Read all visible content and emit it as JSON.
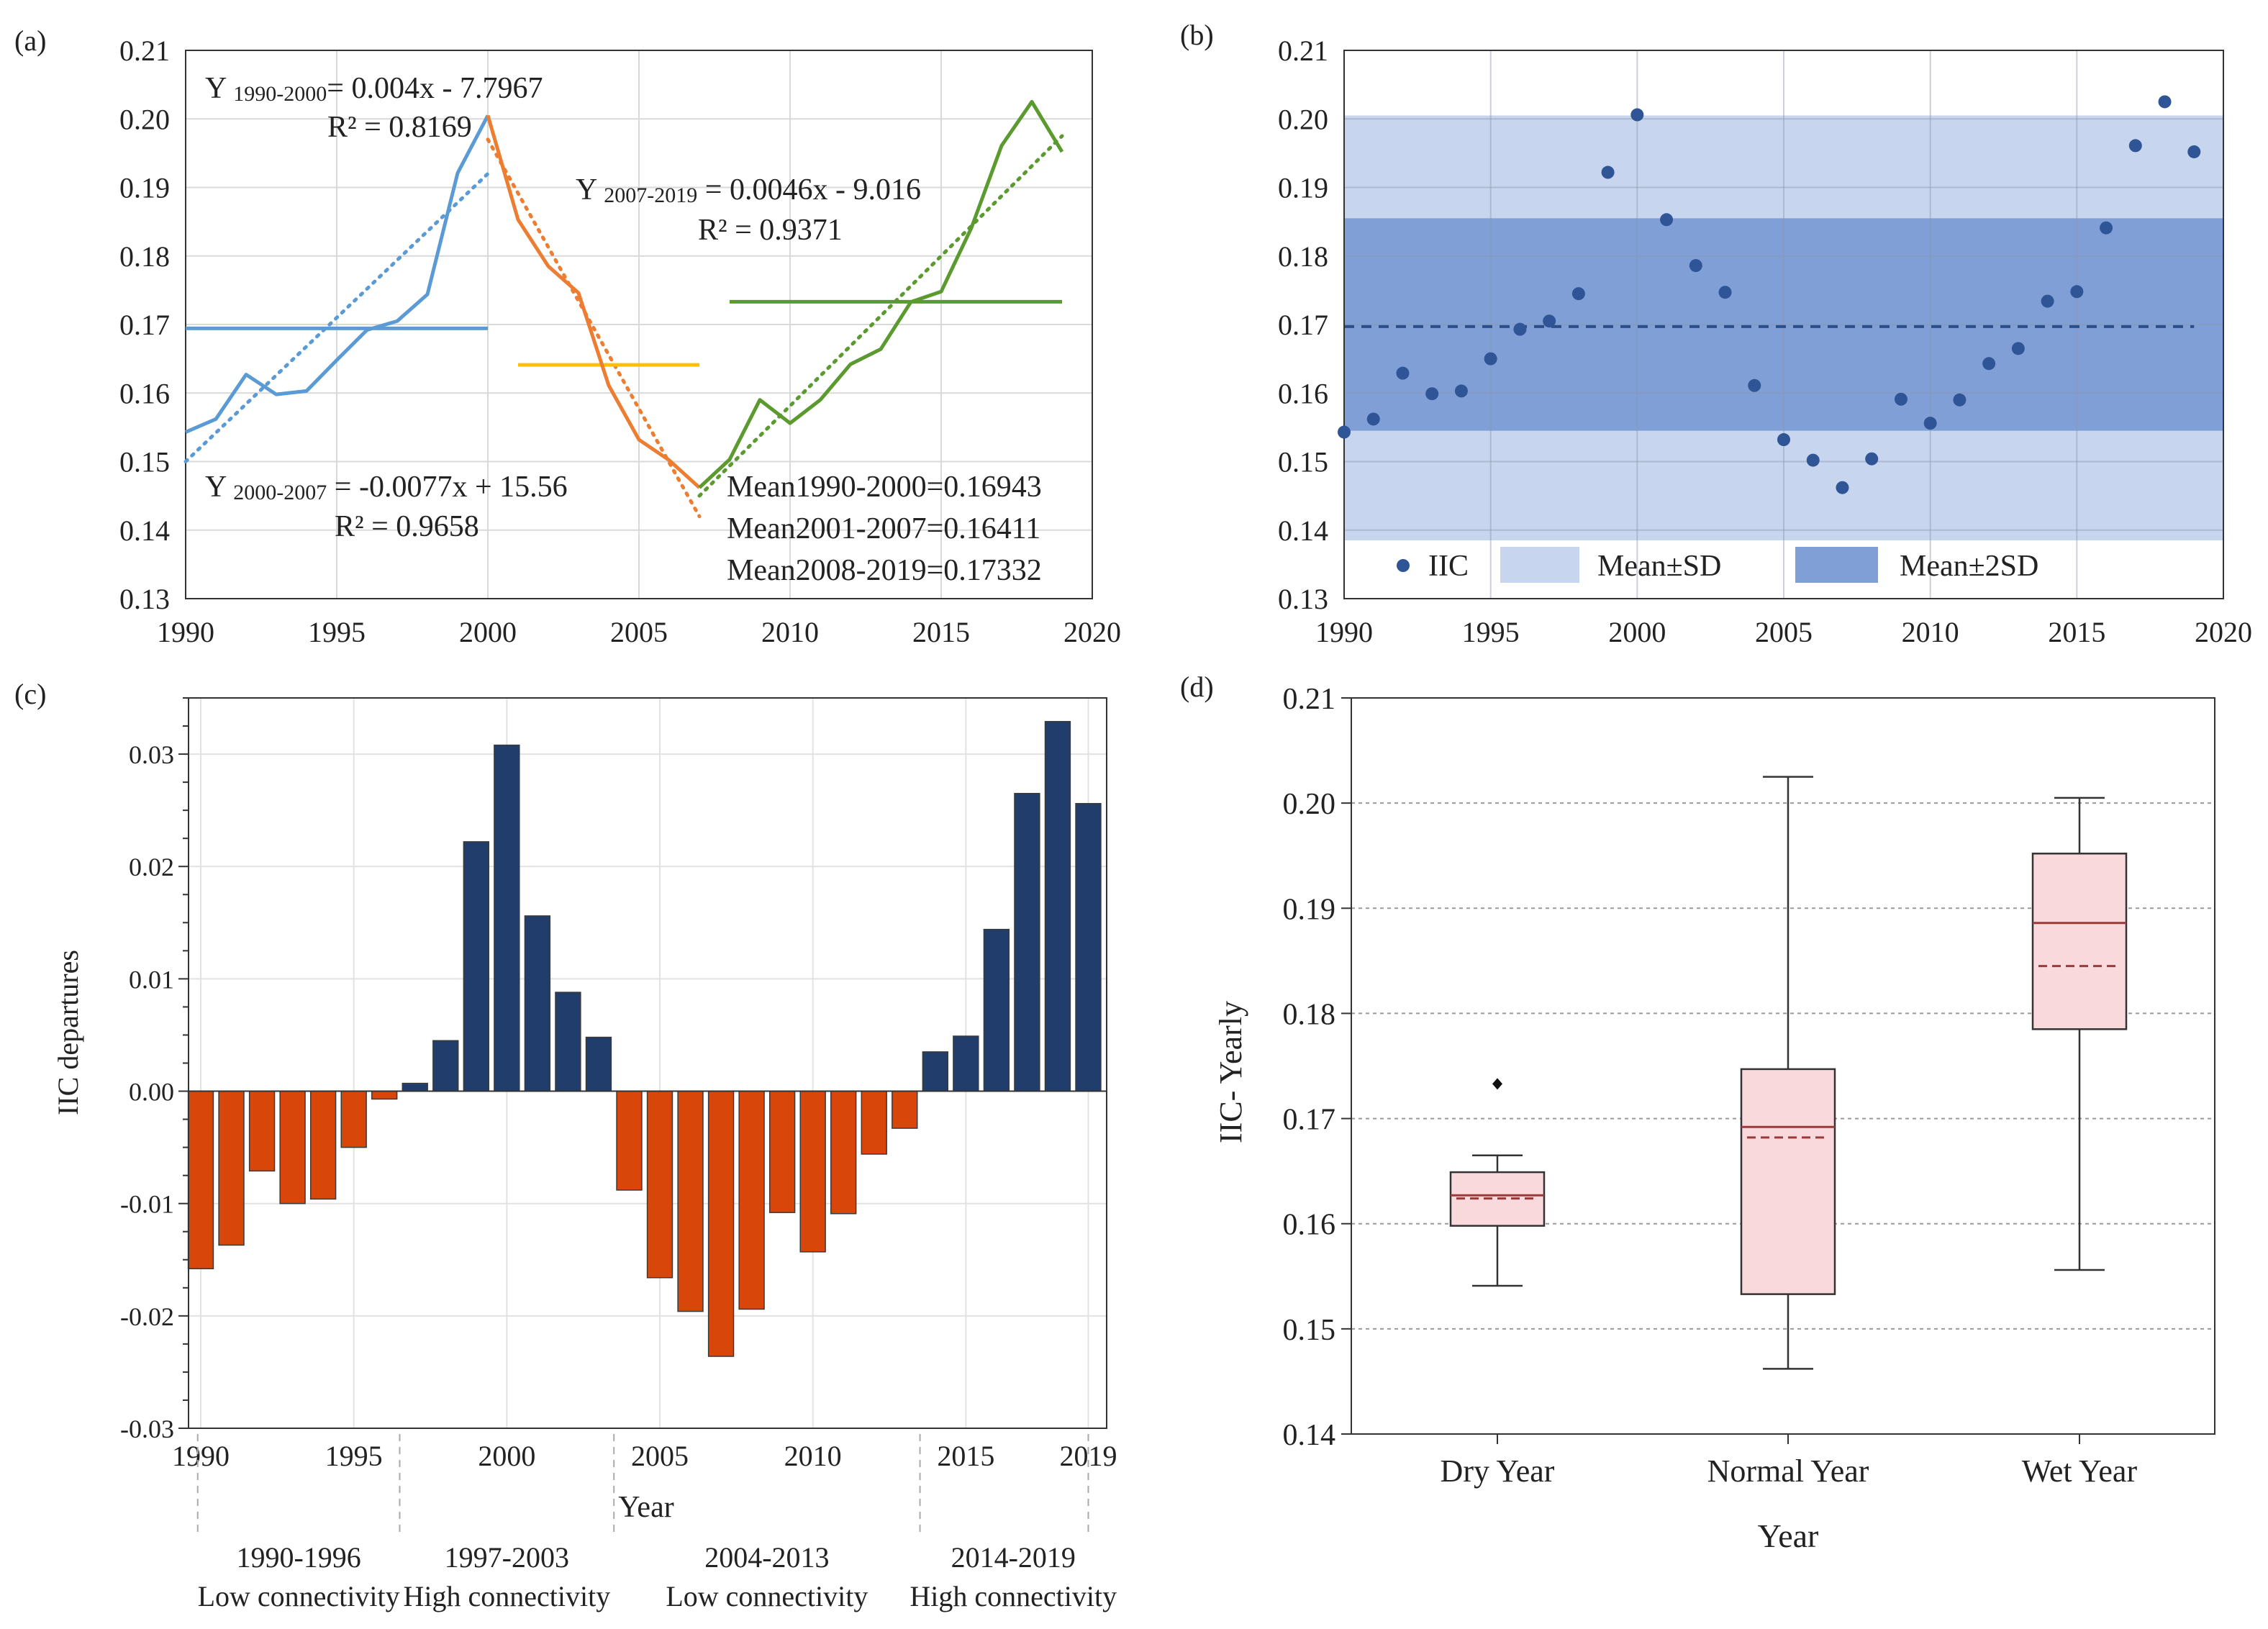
{
  "colors": {
    "blue_line": "#5b9bd5",
    "orange_line": "#ed7d31",
    "yellow_line": "#ffc000",
    "green_line": "#5a9a2e",
    "dot": "#2f5597",
    "band_sd": "#c7d5ee",
    "band_2sd": "#7f9fd6",
    "bar_neg": "#d9460a",
    "bar_pos": "#203d6b",
    "box_fill": "#f9d9dc",
    "median": "#9b3a3a",
    "grid": "#d9d9d9",
    "axis": "#333333"
  },
  "chart_data": [
    {
      "panel": "a",
      "type": "line",
      "panel_label": "(a)",
      "x": [
        1990,
        1991,
        1992,
        1993,
        1994,
        1995,
        1996,
        1997,
        1998,
        1999,
        2000,
        2001,
        2002,
        2003,
        2004,
        2005,
        2006,
        2007,
        2008,
        2009,
        2010,
        2011,
        2012,
        2013,
        2014,
        2015,
        2016,
        2017,
        2018,
        2019
      ],
      "y": [
        0.1543,
        0.1562,
        0.1627,
        0.1598,
        0.1603,
        0.1648,
        0.1692,
        0.1705,
        0.1744,
        0.1921,
        0.2005,
        0.1853,
        0.1785,
        0.1746,
        0.1611,
        0.1532,
        0.1502,
        0.1462,
        0.1503,
        0.159,
        0.1556,
        0.159,
        0.1642,
        0.1664,
        0.1733,
        0.1748,
        0.1841,
        0.1961,
        0.2025,
        0.1952
      ],
      "segments": [
        {
          "name": "1990-2000",
          "from": 1990,
          "to": 2000,
          "color_key": "blue_line"
        },
        {
          "name": "2000-2007",
          "from": 2000,
          "to": 2007,
          "color_key": "orange_line"
        },
        {
          "name": "2007-2019",
          "from": 2007,
          "to": 2019,
          "color_key": "green_line"
        }
      ],
      "trend_lines": [
        {
          "name": "trend-1990-2000",
          "from": [
            1990,
            0.15
          ],
          "to": [
            2000,
            0.192
          ],
          "color_key": "blue_line"
        },
        {
          "name": "trend-2000-2007",
          "from": [
            2000,
            0.197
          ],
          "to": [
            2007,
            0.142
          ],
          "color_key": "orange_line"
        },
        {
          "name": "trend-2007-2019",
          "from": [
            2007,
            0.145
          ],
          "to": [
            2019,
            0.1975
          ],
          "color_key": "green_line"
        }
      ],
      "mean_lines": [
        {
          "name": "mean-1990-2000",
          "from": 1990,
          "to": 2000,
          "value": 0.16943,
          "color_key": "blue_line"
        },
        {
          "name": "mean-2001-2007",
          "from": 2001,
          "to": 2007,
          "value": 0.16411,
          "color_key": "yellow_line"
        },
        {
          "name": "mean-2008-2019",
          "from": 2008,
          "to": 2019,
          "value": 0.17332,
          "color_key": "green_line"
        }
      ],
      "annotations": {
        "eq1_prefix": "Y ",
        "eq1_sub": "1990-2000",
        "eq1_rest": "= 0.004x - 7.7967",
        "r1": "R² = 0.8169",
        "eq2_prefix": "Y ",
        "eq2_sub": "2007-2019",
        "eq2_rest": " = 0.0046x - 9.016",
        "r2": "R² = 0.9371",
        "eq3_prefix": "Y ",
        "eq3_sub": "2000-2007",
        "eq3_rest": " = -0.0077x + 15.56",
        "r3": "R² = 0.9658",
        "mean1": "Mean1990-2000=0.16943",
        "mean2": "Mean2001-2007=0.16411",
        "mean3": "Mean2008-2019=0.17332"
      },
      "xlim": [
        1990,
        2020
      ],
      "ylim": [
        0.13,
        0.21
      ],
      "xticks": [
        "1990",
        "1995",
        "2000",
        "2005",
        "2010",
        "2015",
        "2020"
      ],
      "yticks": [
        "0.13",
        "0.14",
        "0.15",
        "0.16",
        "0.17",
        "0.18",
        "0.19",
        "0.20",
        "0.21"
      ],
      "grid": true
    },
    {
      "panel": "b",
      "type": "scatter",
      "panel_label": "(b)",
      "x": [
        1990,
        1991,
        1992,
        1993,
        1994,
        1995,
        1996,
        1997,
        1998,
        1999,
        2000,
        2001,
        2002,
        2003,
        2004,
        2005,
        2006,
        2007,
        2008,
        2009,
        2010,
        2011,
        2012,
        2013,
        2014,
        2015,
        2016,
        2017,
        2018,
        2019
      ],
      "y": [
        0.1543,
        0.1562,
        0.1629,
        0.1599,
        0.1603,
        0.165,
        0.1693,
        0.1705,
        0.1745,
        0.1922,
        0.2006,
        0.1853,
        0.1786,
        0.1747,
        0.1611,
        0.1532,
        0.1502,
        0.1462,
        0.1504,
        0.1591,
        0.1556,
        0.159,
        0.1643,
        0.1665,
        0.1734,
        0.1748,
        0.1841,
        0.1961,
        0.2025,
        0.1952
      ],
      "mean": 0.1697,
      "sd_band": [
        0.1545,
        0.1855
      ],
      "sd2_band": [
        0.1385,
        0.2005
      ],
      "legend": {
        "iic": "IIC",
        "sd": "Mean±SD",
        "sd2": "Mean±2SD"
      },
      "xlim": [
        1990,
        2020
      ],
      "ylim": [
        0.13,
        0.21
      ],
      "xticks": [
        "1990",
        "1995",
        "2000",
        "2005",
        "2010",
        "2015",
        "2020"
      ],
      "yticks": [
        "0.13",
        "0.14",
        "0.15",
        "0.16",
        "0.17",
        "0.18",
        "0.19",
        "0.20",
        "0.21"
      ],
      "grid": true
    },
    {
      "panel": "c",
      "type": "bar",
      "panel_label": "(c)",
      "x": [
        1990,
        1991,
        1992,
        1993,
        1994,
        1995,
        1996,
        1997,
        1998,
        1999,
        2000,
        2001,
        2002,
        2003,
        2004,
        2005,
        2006,
        2007,
        2008,
        2009,
        2010,
        2011,
        2012,
        2013,
        2014,
        2015,
        2016,
        2017,
        2018,
        2019
      ],
      "values": [
        -0.0158,
        -0.0137,
        -0.0071,
        -0.01,
        -0.0096,
        -0.005,
        -0.0007,
        0.0007,
        0.0045,
        0.0222,
        0.0308,
        0.0156,
        0.0088,
        0.0048,
        -0.0088,
        -0.0166,
        -0.0196,
        -0.0236,
        -0.0194,
        -0.0108,
        -0.0143,
        -0.0109,
        -0.0056,
        -0.0033,
        0.0035,
        0.0049,
        0.0144,
        0.0265,
        0.0329,
        0.0256
      ],
      "ylabel": "IIC departures",
      "xlabel": "Year",
      "ylim": [
        -0.03,
        0.035
      ],
      "xticks": [
        "1990",
        "1995",
        "2000",
        "2005",
        "2010",
        "2015",
        "2019"
      ],
      "yticks": [
        "-0.03",
        "-0.02",
        "-0.01",
        "0.00",
        "0.01",
        "0.02",
        "0.03"
      ],
      "periods": [
        {
          "range": "1990-1996",
          "label": "Low connectivity"
        },
        {
          "range": "1997-2003",
          "label": "High connectivity"
        },
        {
          "range": "2004-2013",
          "label": "Low connectivity"
        },
        {
          "range": "2014-2019",
          "label": "High connectivity"
        }
      ],
      "grid": true
    },
    {
      "panel": "d",
      "type": "box",
      "panel_label": "(d)",
      "categories": [
        "Dry Year",
        "Normal Year",
        "Wet Year"
      ],
      "boxes": [
        {
          "min": 0.1541,
          "q1": 0.1598,
          "median": 0.1627,
          "mean": 0.1624,
          "q3": 0.1649,
          "max": 0.1665,
          "outliers": [
            0.1733
          ]
        },
        {
          "min": 0.1462,
          "q1": 0.1533,
          "median": 0.1692,
          "mean": 0.1682,
          "q3": 0.1747,
          "max": 0.2025,
          "outliers": []
        },
        {
          "min": 0.1556,
          "q1": 0.1785,
          "median": 0.1886,
          "mean": 0.1845,
          "q3": 0.1952,
          "max": 0.2005,
          "outliers": []
        }
      ],
      "ylabel": "IIC- Yearly",
      "xlabel": "Year",
      "ylim": [
        0.14,
        0.21
      ],
      "yticks": [
        "0.14",
        "0.15",
        "0.16",
        "0.17",
        "0.18",
        "0.19",
        "0.20",
        "0.21"
      ],
      "grid": true
    }
  ]
}
